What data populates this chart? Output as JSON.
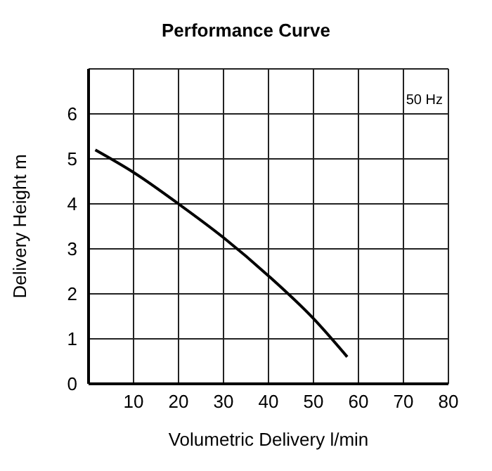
{
  "chart_data": {
    "type": "line",
    "title": "Performance Curve",
    "xlabel": "Volumetric Delivery   l/min",
    "ylabel": "Delivery Height   m",
    "annotations": [
      "50 Hz"
    ],
    "series": [
      {
        "color": "#000000",
        "x": [
          1.5,
          10,
          20,
          30,
          40,
          50,
          57.5
        ],
        "values": [
          5.2,
          4.7,
          4.0,
          3.25,
          2.4,
          1.45,
          0.6
        ]
      }
    ],
    "xlim": [
      0,
      80
    ],
    "xticks": [
      {
        "value": 0,
        "label": null
      },
      10,
      20,
      30,
      40,
      50,
      60,
      70,
      80
    ],
    "ylim": [
      0,
      7
    ],
    "yticks": [
      0,
      1,
      2,
      3,
      4,
      5,
      6,
      {
        "value": 7,
        "label": null
      }
    ],
    "grid": true,
    "marker": "none",
    "line_style": "solid",
    "legend": false
  }
}
